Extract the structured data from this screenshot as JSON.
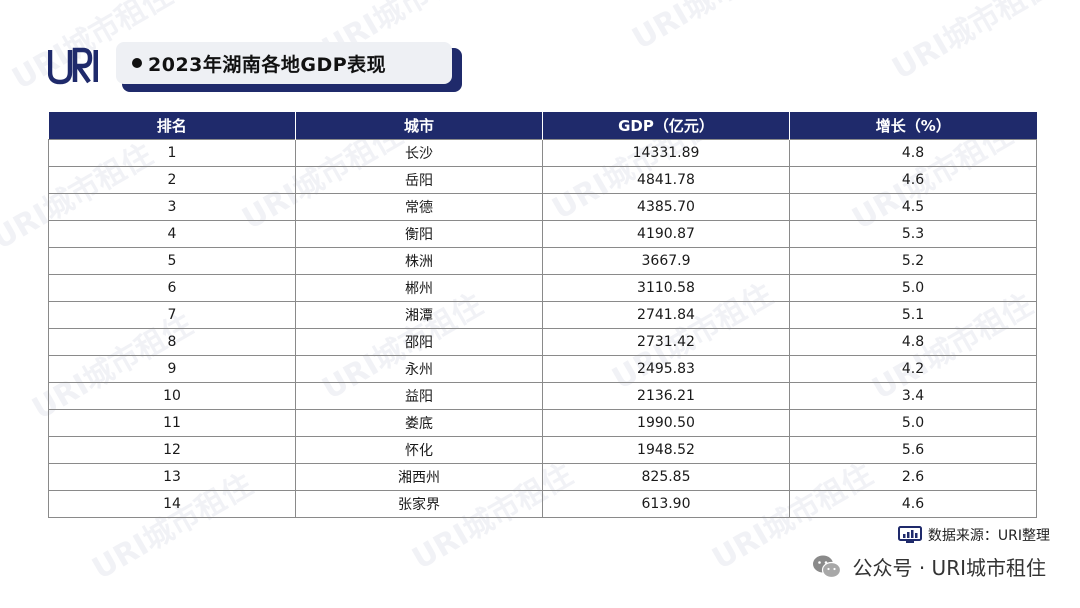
{
  "logo": {
    "text": "URI"
  },
  "title": "2023年湖南各地GDP表现",
  "watermark": "URI城市租住",
  "table": {
    "headers": [
      "排名",
      "城市",
      "GDP（亿元）",
      "增长（%）"
    ],
    "rows": [
      [
        "1",
        "长沙",
        "14331.89",
        "4.8"
      ],
      [
        "2",
        "岳阳",
        "4841.78",
        "4.6"
      ],
      [
        "3",
        "常德",
        "4385.70",
        "4.5"
      ],
      [
        "4",
        "衡阳",
        "4190.87",
        "5.3"
      ],
      [
        "5",
        "株洲",
        "3667.9",
        "5.2"
      ],
      [
        "6",
        "郴州",
        "3110.58",
        "5.0"
      ],
      [
        "7",
        "湘潭",
        "2741.84",
        "5.1"
      ],
      [
        "8",
        "邵阳",
        "2731.42",
        "4.8"
      ],
      [
        "9",
        "永州",
        "2495.83",
        "4.2"
      ],
      [
        "10",
        "益阳",
        "2136.21",
        "3.4"
      ],
      [
        "11",
        "娄底",
        "1990.50",
        "5.0"
      ],
      [
        "12",
        "怀化",
        "1948.52",
        "5.6"
      ],
      [
        "13",
        "湘西州",
        "825.85",
        "2.6"
      ],
      [
        "14",
        "张家界",
        "613.90",
        "4.6"
      ]
    ]
  },
  "source": {
    "icon": "chart-monitor-icon",
    "text": "数据来源：URI整理"
  },
  "footer": {
    "icon": "wechat-icon",
    "text": "公众号 · URI城市租住"
  },
  "colors": {
    "header_bg": "#1f2a6b",
    "border": "#8a8a8a",
    "title_bg": "#eef0f4"
  }
}
